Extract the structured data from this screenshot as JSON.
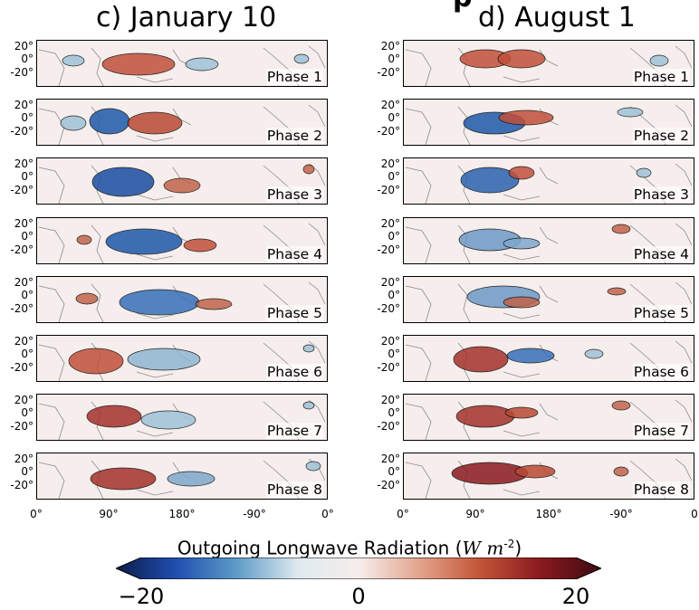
{
  "figure": {
    "left_title": "c) January 10",
    "right_title": "d) August 1",
    "partial_header_glyph": "p"
  },
  "panels": {
    "phase_labels": [
      "Phase 1",
      "Phase 2",
      "Phase 3",
      "Phase 4",
      "Phase 5",
      "Phase 6",
      "Phase 7",
      "Phase 8"
    ],
    "y_ticks": [
      "20°",
      "0°",
      "-20°"
    ],
    "x_ticks_left": [
      "0°",
      "90°",
      "180°",
      "-90°",
      "0°"
    ],
    "x_ticks_right": [
      "0°",
      "90°",
      "180°",
      "-90°",
      "0"
    ]
  },
  "colorbar": {
    "title_prefix": "Outgoing Longwave Radiation (",
    "title_unit_w": "W",
    "title_unit_m": " m",
    "title_unit_exp": "-2",
    "title_suffix": ")",
    "min_label": "−20",
    "mid_label": "0",
    "max_label": "20",
    "colors": [
      "#0d1b4a",
      "#1f4fb0",
      "#5f9cc8",
      "#dfe9ef",
      "#f6eeec",
      "#e3a48d",
      "#c35437",
      "#8a1a1f",
      "#3e0a12"
    ]
  }
}
